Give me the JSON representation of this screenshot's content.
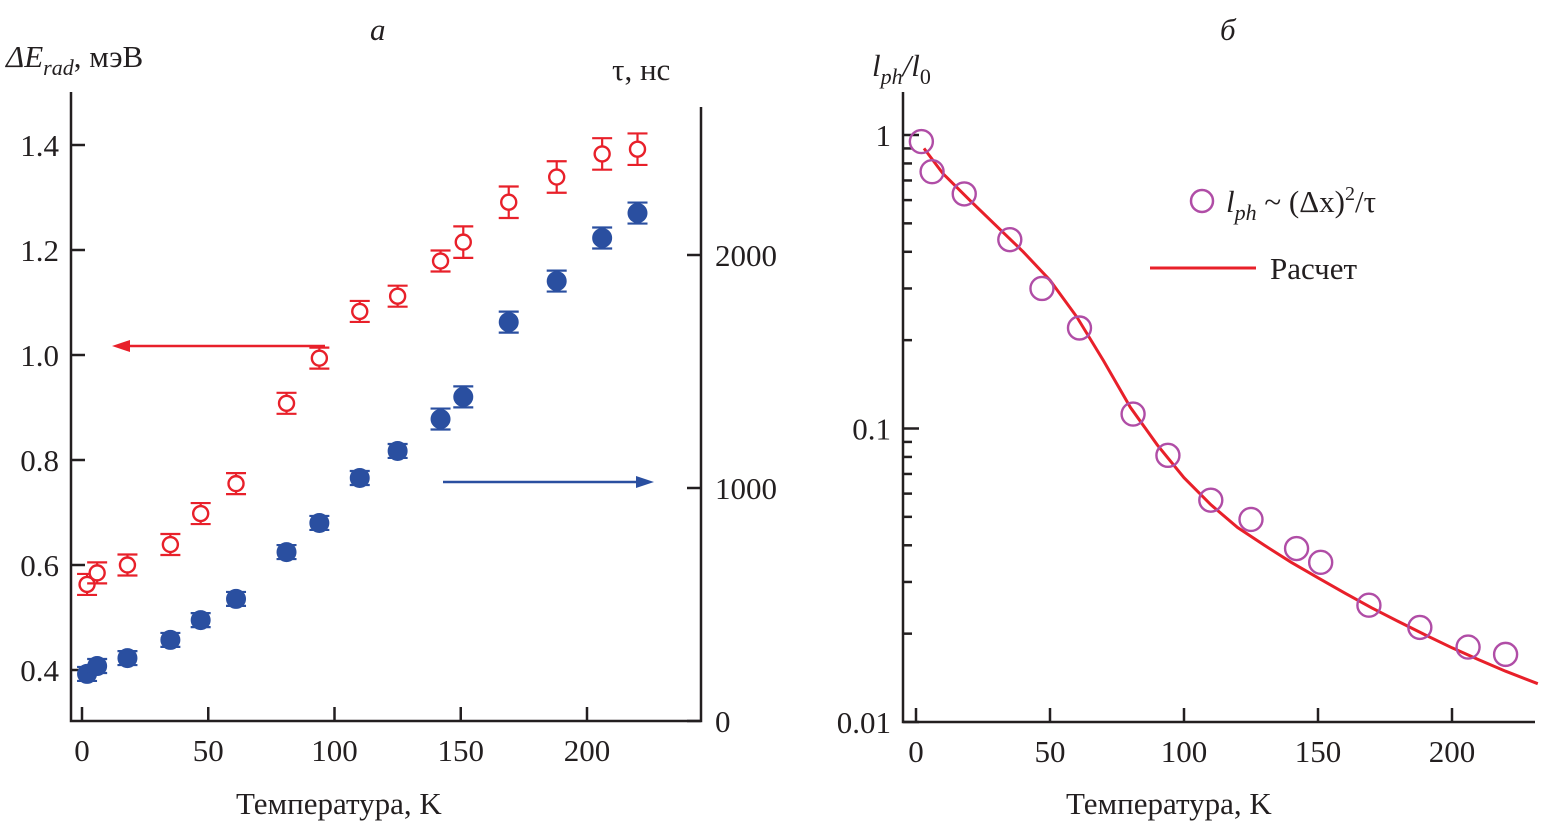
{
  "colors": {
    "delta_e": "#e8202a",
    "tau": "#2a4fa0",
    "lph_points": "#b04da6",
    "calc_line": "#e8202a",
    "axis": "#231f20"
  },
  "chart_data": [
    {
      "panel": "а",
      "type": "scatter",
      "xlabel": "Температура, K",
      "ylabel_left": {
        "symbol": "ΔE",
        "sub": "rad",
        "unit": ", мэВ"
      },
      "ylabel_right": "τ, нс",
      "xlim": [
        -3,
        232
      ],
      "ylim_left": [
        0.31,
        1.5
      ],
      "ylim_right": [
        0,
        2850
      ],
      "xticks": [
        0,
        50,
        100,
        150,
        200
      ],
      "yticks_left": [
        "0.4",
        "0.6",
        "0.8",
        "1.0",
        "1.2",
        "1.4"
      ],
      "yticks_right": [
        "0",
        "1000",
        "2000"
      ],
      "grid": false,
      "arrows": [
        {
          "series": "ΔE_rad",
          "points_to": "left-axis"
        },
        {
          "series": "τ",
          "points_to": "right-axis"
        }
      ],
      "series": [
        {
          "name": "ΔE_rad",
          "axis": "left",
          "marker": "open-circle",
          "error_bars": true,
          "x": [
            2,
            6,
            18,
            35,
            47,
            61,
            81,
            94,
            110,
            125,
            142,
            151,
            169,
            188,
            206,
            220
          ],
          "y": [
            0.563,
            0.585,
            0.6,
            0.639,
            0.698,
            0.755,
            0.908,
            0.994,
            1.083,
            1.112,
            1.179,
            1.215,
            1.291,
            1.339,
            1.383,
            1.392
          ],
          "yerr": [
            0.02,
            0.02,
            0.02,
            0.02,
            0.02,
            0.02,
            0.02,
            0.02,
            0.02,
            0.02,
            0.02,
            0.03,
            0.03,
            0.03,
            0.03,
            0.03
          ]
        },
        {
          "name": "τ",
          "axis": "right",
          "marker": "filled-circle",
          "error_bars": true,
          "x": [
            2,
            6,
            18,
            35,
            47,
            61,
            81,
            94,
            110,
            125,
            142,
            151,
            169,
            188,
            206,
            220
          ],
          "y": [
            202,
            236,
            270,
            348,
            433,
            524,
            725,
            850,
            1043,
            1159,
            1296,
            1391,
            1712,
            1888,
            2073,
            2180
          ],
          "yerr": [
            30,
            30,
            30,
            30,
            30,
            30,
            30,
            30,
            30,
            30,
            45,
            45,
            45,
            45,
            45,
            45
          ]
        }
      ]
    },
    {
      "panel": "б",
      "type": "scatter",
      "xlabel": "Температура, K",
      "ylabel": {
        "main": "l",
        "sub": "ph",
        "slash": "/",
        "main2": "l",
        "sub2": "0"
      },
      "yscale": "log",
      "xlim": [
        -5,
        232
      ],
      "ylim": [
        0.01,
        1.35
      ],
      "xticks": [
        0,
        50,
        100,
        150,
        200
      ],
      "yticks": [
        "0.01",
        "0.1",
        "1"
      ],
      "grid": false,
      "legend": {
        "placement": "top-right",
        "entries": [
          {
            "marker": "open-circle",
            "text_main": "l",
            "text_sub": "ph",
            "text_rest": " ~ (Δx)",
            "text_sup": "2",
            "text_tail": "/τ"
          },
          {
            "marker": "line",
            "text": "Расчет"
          }
        ]
      },
      "series": [
        {
          "name": "l_ph ~ (Δx)²/τ",
          "marker": "open-circle",
          "x": [
            2,
            6,
            18,
            35,
            47,
            61,
            81,
            94,
            110,
            125,
            142,
            151,
            169,
            188,
            206,
            220
          ],
          "y": [
            0.95,
            0.75,
            0.63,
            0.44,
            0.3,
            0.22,
            0.112,
            0.081,
            0.057,
            0.049,
            0.039,
            0.035,
            0.025,
            0.021,
            0.018,
            0.017
          ]
        },
        {
          "name": "Расчет",
          "marker": "line",
          "x": [
            3,
            10,
            20,
            30,
            40,
            50,
            60,
            70,
            80,
            90,
            100,
            110,
            120,
            130,
            140,
            150,
            160,
            170,
            180,
            190,
            200,
            210,
            220,
            232
          ],
          "y": [
            0.9,
            0.74,
            0.6,
            0.49,
            0.4,
            0.32,
            0.24,
            0.17,
            0.118,
            0.088,
            0.068,
            0.055,
            0.046,
            0.04,
            0.035,
            0.031,
            0.0275,
            0.0245,
            0.022,
            0.0198,
            0.0179,
            0.0163,
            0.0149,
            0.0135
          ]
        }
      ]
    }
  ]
}
